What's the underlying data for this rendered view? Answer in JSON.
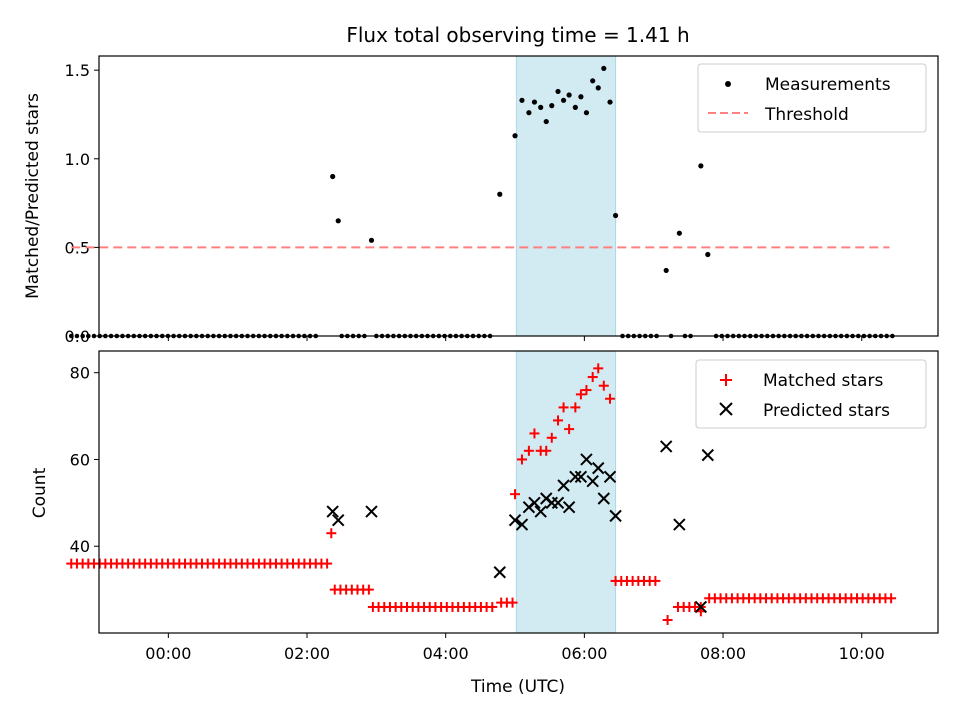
{
  "chart_data": [
    {
      "type": "scatter",
      "title": "Flux total observing time = 1.41 h",
      "xlabel": "",
      "ylabel": "Matched/Predicted stars",
      "xlim": [
        -1.0,
        11.1
      ],
      "ylim": [
        0.0,
        1.58
      ],
      "yticks": [
        0.0,
        0.5,
        1.0,
        1.5
      ],
      "ytick_labels": [
        "0.0",
        "0.5",
        "1.0",
        "1.5"
      ],
      "xticks": [
        0,
        2,
        4,
        6,
        8,
        10
      ],
      "shaded_region": {
        "x_start": 5.02,
        "x_end": 6.45,
        "color": "#add8e6"
      },
      "legend_position": "upper right",
      "series": [
        {
          "name": "Measurements",
          "marker": "dot",
          "color": "#000000",
          "points": [
            [
              2.37,
              0.9
            ],
            [
              2.45,
              0.65
            ],
            [
              2.93,
              0.54
            ],
            [
              4.78,
              0.8
            ],
            [
              5.0,
              1.13
            ],
            [
              5.1,
              1.33
            ],
            [
              5.2,
              1.26
            ],
            [
              5.28,
              1.32
            ],
            [
              5.37,
              1.29
            ],
            [
              5.45,
              1.21
            ],
            [
              5.53,
              1.3
            ],
            [
              5.62,
              1.38
            ],
            [
              5.7,
              1.33
            ],
            [
              5.78,
              1.36
            ],
            [
              5.87,
              1.29
            ],
            [
              5.95,
              1.35
            ],
            [
              6.03,
              1.26
            ],
            [
              6.12,
              1.44
            ],
            [
              6.2,
              1.4
            ],
            [
              6.28,
              1.51
            ],
            [
              6.37,
              1.32
            ],
            [
              6.45,
              0.68
            ],
            [
              7.18,
              0.37
            ],
            [
              7.37,
              0.58
            ],
            [
              7.68,
              0.96
            ],
            [
              7.78,
              0.46
            ]
          ],
          "zero_points_x_ranges": [
            [
              -1.4,
              2.2
            ],
            [
              2.5,
              2.9
            ],
            [
              3.0,
              4.7
            ],
            [
              6.55,
              7.1
            ],
            [
              7.25,
              7.3
            ],
            [
              7.45,
              7.6
            ],
            [
              7.9,
              10.5
            ]
          ]
        },
        {
          "name": "Threshold",
          "style": "dashed",
          "color": "#ff8080",
          "x": [
            -1.4,
            10.4
          ],
          "y": [
            0.5,
            0.5
          ]
        }
      ]
    },
    {
      "type": "scatter",
      "title": "",
      "xlabel": "Time (UTC)",
      "ylabel": "Count",
      "xlim": [
        -1.0,
        11.1
      ],
      "ylim": [
        20,
        85
      ],
      "yticks": [
        40,
        60,
        80
      ],
      "ytick_labels": [
        "40",
        "60",
        "80"
      ],
      "xticks": [
        0,
        2,
        4,
        6,
        8,
        10
      ],
      "xtick_labels": [
        "00:00",
        "02:00",
        "04:00",
        "06:00",
        "08:00",
        "10:00"
      ],
      "shaded_region": {
        "x_start": 5.02,
        "x_end": 6.45,
        "color": "#add8e6"
      },
      "legend_position": "upper right",
      "series": [
        {
          "name": "Matched stars",
          "marker": "+",
          "color": "#ff0000",
          "segments": [
            {
              "x_range": [
                -1.4,
                2.3
              ],
              "y": 36
            },
            {
              "x_range": [
                2.4,
                2.9
              ],
              "y": 30
            },
            {
              "x_range": [
                2.95,
                4.75
              ],
              "y": 26
            },
            {
              "x_range": [
                4.8,
                4.98
              ],
              "y": 27
            },
            {
              "x_range": [
                6.45,
                7.1
              ],
              "y": 32
            },
            {
              "x_range": [
                7.2,
                7.25
              ],
              "y": 23
            },
            {
              "x_range": [
                7.35,
                7.7
              ],
              "y": 26
            },
            {
              "x_range": [
                7.8,
                10.5
              ],
              "y": 28
            }
          ],
          "points": [
            [
              2.35,
              43
            ],
            [
              5.0,
              52
            ],
            [
              5.1,
              60
            ],
            [
              5.2,
              62
            ],
            [
              5.28,
              66
            ],
            [
              5.37,
              62
            ],
            [
              5.45,
              62
            ],
            [
              5.53,
              65
            ],
            [
              5.62,
              69
            ],
            [
              5.7,
              72
            ],
            [
              5.78,
              67
            ],
            [
              5.87,
              72
            ],
            [
              5.95,
              75
            ],
            [
              6.03,
              76
            ],
            [
              6.12,
              79
            ],
            [
              6.2,
              81
            ],
            [
              6.28,
              77
            ],
            [
              6.37,
              74
            ],
            [
              7.68,
              25
            ]
          ]
        },
        {
          "name": "Predicted stars",
          "marker": "x",
          "color": "#000000",
          "points": [
            [
              2.37,
              48
            ],
            [
              2.45,
              46
            ],
            [
              2.93,
              48
            ],
            [
              4.78,
              34
            ],
            [
              5.0,
              46
            ],
            [
              5.1,
              45
            ],
            [
              5.2,
              49
            ],
            [
              5.28,
              50
            ],
            [
              5.37,
              48
            ],
            [
              5.45,
              51
            ],
            [
              5.53,
              50
            ],
            [
              5.62,
              50
            ],
            [
              5.7,
              54
            ],
            [
              5.78,
              49
            ],
            [
              5.87,
              56
            ],
            [
              5.95,
              56
            ],
            [
              6.03,
              60
            ],
            [
              6.12,
              55
            ],
            [
              6.2,
              58
            ],
            [
              6.28,
              51
            ],
            [
              6.37,
              56
            ],
            [
              6.45,
              47
            ],
            [
              7.18,
              63
            ],
            [
              7.37,
              45
            ],
            [
              7.68,
              26
            ],
            [
              7.78,
              61
            ]
          ]
        }
      ]
    }
  ]
}
